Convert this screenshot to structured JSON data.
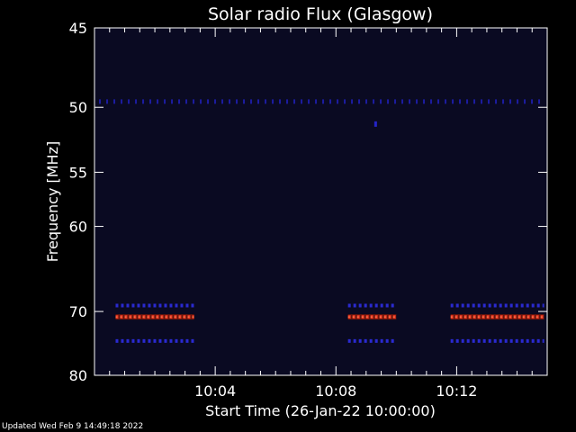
{
  "chart_data": {
    "type": "heatmap",
    "title": "Solar radio Flux (Glasgow)",
    "xlabel": "Start Time (26-Jan-22 10:00:00)",
    "ylabel": "Frequency [MHz]",
    "x_ticks": [
      "10:04",
      "10:08",
      "10:12"
    ],
    "x_tick_minutes": [
      4,
      8,
      12
    ],
    "xlim_minutes": [
      0,
      15
    ],
    "y_ticks": [
      45,
      50,
      55,
      60,
      70,
      80
    ],
    "ylim_mhz": [
      45,
      80
    ],
    "y_scale": "reciprocal",
    "background_color": "#0a0a22",
    "axis_color": "#ffffff",
    "bands": [
      {
        "freq_mhz": 49.6,
        "color": "#1c1ca0",
        "segments": [
          [
            0.15,
            14.9
          ]
        ],
        "style": "dotted-weak"
      },
      {
        "freq_mhz": 69.2,
        "color": "#2a2ad0",
        "segments": [
          [
            0.7,
            3.3
          ],
          [
            8.4,
            10.0
          ],
          [
            11.8,
            14.9
          ]
        ],
        "style": "dotted"
      },
      {
        "freq_mhz": 70.75,
        "color": "#e83420",
        "segments": [
          [
            0.7,
            3.3
          ],
          [
            8.4,
            10.0
          ],
          [
            11.8,
            14.9
          ]
        ],
        "style": "strong"
      },
      {
        "freq_mhz": 74.3,
        "color": "#2a2ad0",
        "segments": [
          [
            0.7,
            3.3
          ],
          [
            8.4,
            10.0
          ],
          [
            11.8,
            14.9
          ]
        ],
        "style": "dotted"
      }
    ],
    "points": [
      {
        "minute": 9.3,
        "freq_mhz": 51.2,
        "color": "#2424c8"
      }
    ]
  },
  "footer": "Updated Wed Feb  9 14:49:18 2022"
}
